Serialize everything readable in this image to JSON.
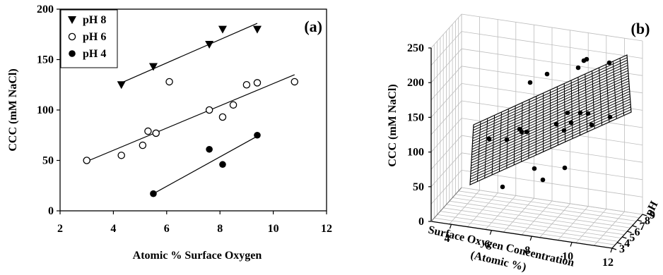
{
  "panel_a": {
    "panel_label": "(a)",
    "xlabel": "Atomic % Surface Oxygen",
    "ylabel": "CCC (mM NaCl)",
    "xticks": [
      "2",
      "4",
      "6",
      "8",
      "10",
      "12"
    ],
    "yticks": [
      "0",
      "50",
      "100",
      "150",
      "200"
    ],
    "legend": [
      "pH 8",
      "pH 6",
      "pH 4"
    ]
  },
  "panel_b": {
    "panel_label": "(b)",
    "ylabel": "CCC (mM NaCl)",
    "xlabel_line1": "Surface Oxygen Concentration",
    "xlabel_line2": "(Atomic %)",
    "zlabel": "pH",
    "cccticks": [
      "0",
      "50",
      "100",
      "150",
      "200",
      "250"
    ],
    "oxyticks": [
      "4",
      "6",
      "8",
      "10",
      "12"
    ],
    "phticks": [
      "3",
      "4",
      "5",
      "6",
      "7",
      "8",
      "9"
    ]
  },
  "chart_data": [
    {
      "type": "scatter",
      "panel": "(a)",
      "xlabel": "Atomic % Surface Oxygen",
      "ylabel": "CCC (mM NaCl)",
      "xlim": [
        2,
        12
      ],
      "ylim": [
        0,
        200
      ],
      "legend_position": "top-left",
      "grid": false,
      "series": [
        {
          "name": "pH 8",
          "marker": "down-triangle-filled",
          "x": [
            4.3,
            5.5,
            7.6,
            8.1,
            9.4
          ],
          "y": [
            125,
            143,
            165,
            180,
            180
          ],
          "fit": {
            "x": [
              4.3,
              9.4
            ],
            "y": [
              127,
              186
            ]
          }
        },
        {
          "name": "pH 6",
          "marker": "circle-open",
          "x": [
            3.0,
            4.3,
            5.1,
            5.3,
            5.6,
            6.1,
            7.6,
            8.1,
            8.5,
            9.0,
            9.4,
            10.8
          ],
          "y": [
            50,
            55,
            65,
            79,
            77,
            128,
            100,
            93,
            105,
            125,
            127,
            128
          ],
          "fit": {
            "x": [
              3.0,
              10.8
            ],
            "y": [
              49,
              135
            ]
          }
        },
        {
          "name": "pH 4",
          "marker": "circle-filled",
          "x": [
            5.5,
            7.6,
            8.1,
            9.4
          ],
          "y": [
            17,
            61,
            46,
            75
          ],
          "fit": {
            "x": [
              5.5,
              9.4
            ],
            "y": [
              17,
              74
            ]
          }
        }
      ]
    },
    {
      "type": "scatter",
      "panel": "(b)",
      "projection": "3d",
      "has_fitted_plane": true,
      "xlabel": "Surface Oxygen Concentration (Atomic %)",
      "ylabel": "CCC (mM NaCl)",
      "zlabel": "pH",
      "x_axis_range": [
        3,
        12
      ],
      "y_axis_range": [
        0,
        250
      ],
      "z_axis_range": [
        3,
        9
      ],
      "grid": true
    }
  ]
}
